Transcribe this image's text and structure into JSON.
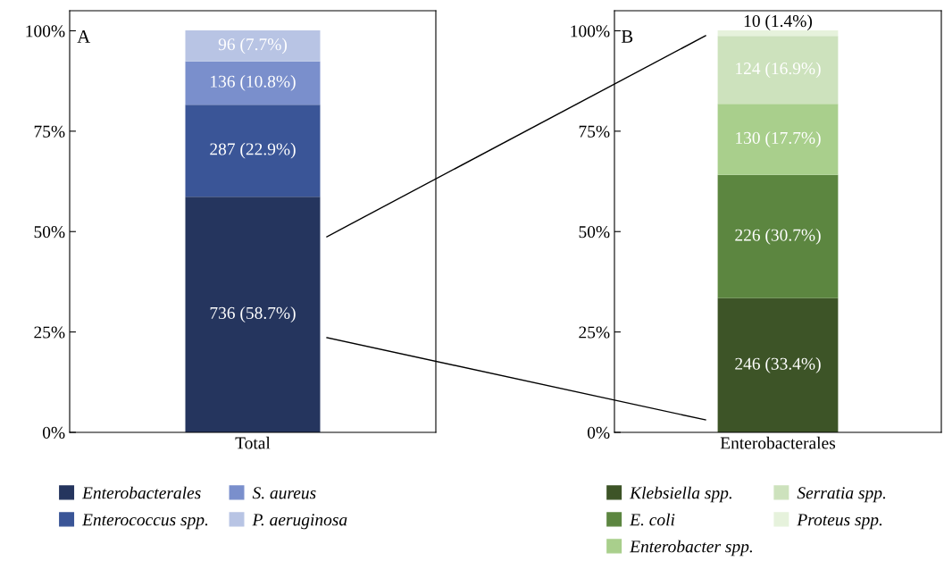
{
  "chart_data": [
    {
      "type": "bar",
      "stacked": true,
      "categories": [
        "Total"
      ],
      "ylim": [
        0,
        105
      ],
      "yticks": [
        {
          "value": 0,
          "label": "0%"
        },
        {
          "value": 25,
          "label": "25%"
        },
        {
          "value": 50,
          "label": "50%"
        },
        {
          "value": 75,
          "label": "75%"
        },
        {
          "value": 100,
          "label": "100%"
        }
      ],
      "annotations": [
        "A"
      ],
      "legend": "bottom",
      "grid": false,
      "series": [
        {
          "name": "Enterobacterales",
          "color": "#25355e",
          "values": [
            58.7
          ],
          "value_labels": [
            "736 (58.7%)"
          ]
        },
        {
          "name": "Enterococcus spp.",
          "color": "#3a5597",
          "values": [
            22.9
          ],
          "value_labels": [
            "287 (22.9%)"
          ]
        },
        {
          "name": "S. aureus",
          "color": "#7a8fcc",
          "values": [
            10.8
          ],
          "value_labels": [
            "136 (10.8%)"
          ]
        },
        {
          "name": "P. aeruginosa",
          "color": "#b8c4e4",
          "values": [
            7.7
          ],
          "value_labels": [
            "96 (7.7%)"
          ]
        }
      ]
    },
    {
      "type": "bar",
      "stacked": true,
      "categories": [
        "Enterobacterales"
      ],
      "ylim": [
        0,
        105
      ],
      "yticks": [
        {
          "value": 0,
          "label": "0%"
        },
        {
          "value": 25,
          "label": "25%"
        },
        {
          "value": 50,
          "label": "50%"
        },
        {
          "value": 75,
          "label": "75%"
        },
        {
          "value": 100,
          "label": "100%"
        }
      ],
      "annotations": [
        "B"
      ],
      "legend": "bottom",
      "grid": false,
      "series": [
        {
          "name": "Klebsiella spp.",
          "color": "#3d5427",
          "values": [
            33.4
          ],
          "value_labels": [
            "246 (33.4%)"
          ]
        },
        {
          "name": "E. coli",
          "color": "#5c8640",
          "values": [
            30.7
          ],
          "value_labels": [
            "226 (30.7%)"
          ]
        },
        {
          "name": "Enterobacter spp.",
          "color": "#a9cf8c",
          "values": [
            17.7
          ],
          "value_labels": [
            "130 (17.7%)"
          ]
        },
        {
          "name": "Serratia spp.",
          "color": "#cde2bd",
          "values": [
            16.9
          ],
          "value_labels": [
            "124 (16.9%)"
          ]
        },
        {
          "name": "Proteus spp.",
          "color": "#e6f2dc",
          "values": [
            1.4
          ],
          "value_labels": [
            "10 (1.4%)"
          ]
        }
      ]
    }
  ]
}
